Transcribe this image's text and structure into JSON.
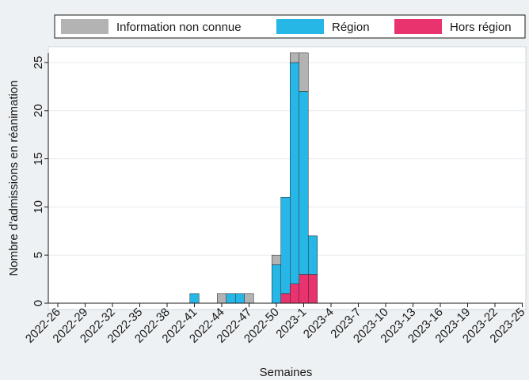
{
  "chart_data": {
    "type": "bar",
    "stacked": true,
    "xlabel": "Semaines",
    "ylabel": "Nombre d'admissions en réanimation",
    "ylim": [
      0,
      27
    ],
    "yticks": [
      0,
      5,
      10,
      15,
      20,
      25
    ],
    "grid": true,
    "legend_position": "top",
    "weeks": [
      "2022-26",
      "2022-27",
      "2022-28",
      "2022-29",
      "2022-30",
      "2022-31",
      "2022-32",
      "2022-33",
      "2022-34",
      "2022-35",
      "2022-36",
      "2022-37",
      "2022-38",
      "2022-39",
      "2022-40",
      "2022-41",
      "2022-42",
      "2022-43",
      "2022-44",
      "2022-45",
      "2022-46",
      "2022-47",
      "2022-48",
      "2022-49",
      "2022-50",
      "2022-51",
      "2022-52",
      "2023-1",
      "2023-2",
      "2023-3",
      "2023-4",
      "2023-5",
      "2023-6",
      "2023-7",
      "2023-8",
      "2023-9",
      "2023-10",
      "2023-11",
      "2023-12",
      "2023-13",
      "2023-14",
      "2023-15",
      "2023-16",
      "2023-17",
      "2023-18",
      "2023-19",
      "2023-20",
      "2023-21",
      "2023-22",
      "2023-23",
      "2023-24",
      "2023-25"
    ],
    "xtick_labels": [
      "2022-26",
      "2022-29",
      "2022-32",
      "2022-35",
      "2022-38",
      "2022-41",
      "2022-44",
      "2022-47",
      "2022-50",
      "2023-1",
      "2023-4",
      "2023-7",
      "2023-10",
      "2023-13",
      "2023-16",
      "2023-19",
      "2023-22",
      "2023-25"
    ],
    "series": [
      {
        "name": "Hors région",
        "color": "#e8336f",
        "values": {
          "2022-51": 1,
          "2022-52": 2,
          "2023-1": 3,
          "2023-2": 3
        }
      },
      {
        "name": "Région",
        "color": "#27b7e6",
        "values": {
          "2022-41": 1,
          "2022-45": 1,
          "2022-46": 1,
          "2022-50": 4,
          "2022-51": 10,
          "2022-52": 23,
          "2023-1": 19,
          "2023-2": 4
        }
      },
      {
        "name": "Information non connue",
        "color": "#b3b3b3",
        "values": {
          "2022-44": 1,
          "2022-47": 1,
          "2022-50": 1,
          "2022-52": 1,
          "2023-1": 4
        }
      }
    ],
    "legend_order": [
      "Information non connue",
      "Région",
      "Hors région"
    ]
  }
}
